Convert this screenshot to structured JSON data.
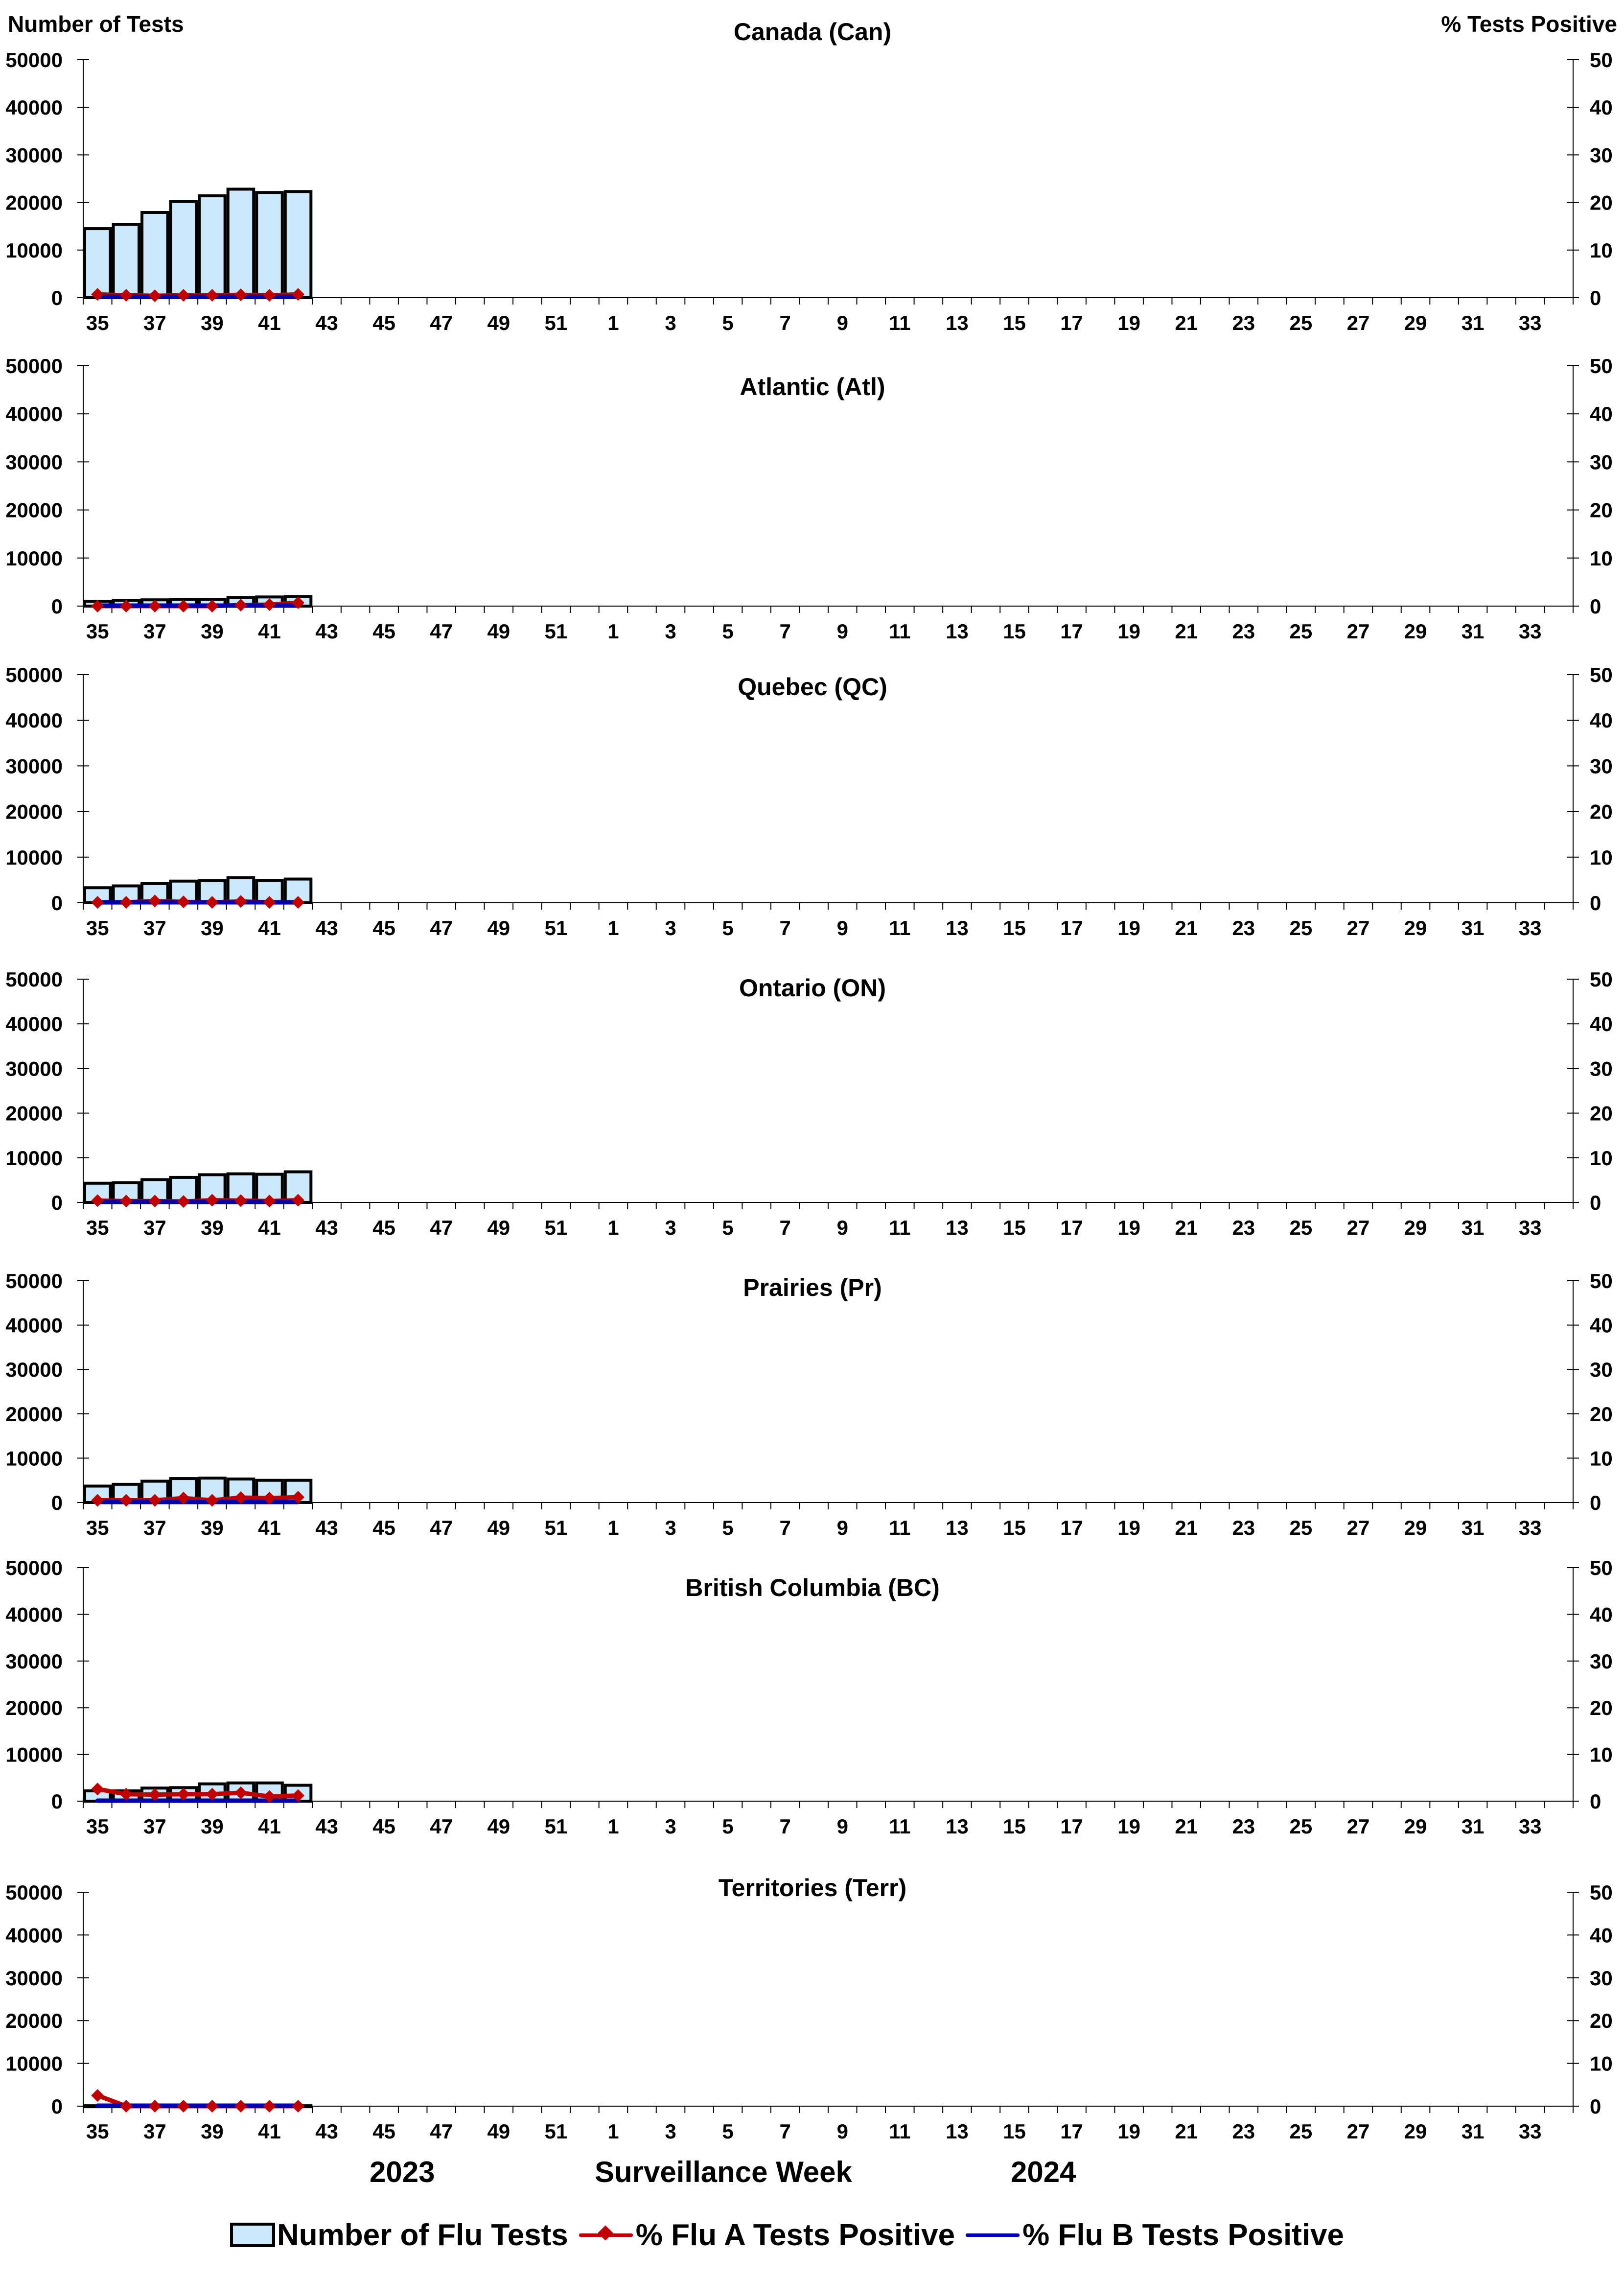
{
  "header": {
    "left_axis_title": "Number of Tests",
    "right_axis_title": "% Tests Positive"
  },
  "footer": {
    "year_left": "2023",
    "xlabel": "Surveillance Week",
    "year_right": "2024"
  },
  "legend": {
    "items": [
      {
        "label": "Number of Flu Tests",
        "type": "bar",
        "color": "#cce9fb"
      },
      {
        "label": "% Flu A Tests Positive",
        "type": "line-marker",
        "color": "#c00000"
      },
      {
        "label": "% Flu B Tests Positive",
        "type": "line",
        "color": "#0000b0"
      }
    ]
  },
  "colors": {
    "bar_fill": "#cce9fb",
    "bar_stroke": "#000000",
    "flu_a": "#c00000",
    "flu_b": "#0000b0",
    "axis": "#000000"
  },
  "chart_data": {
    "type": "bar+line",
    "xlabel": "Surveillance Week",
    "ylabel_left": "Number of Tests",
    "ylabel_right": "% Tests Positive",
    "ylim_left": [
      0,
      50000
    ],
    "ylim_right": [
      0,
      50
    ],
    "yticks_left": [
      "0",
      "10000",
      "20000",
      "30000",
      "40000",
      "50000"
    ],
    "yticks_right": [
      "0",
      "10",
      "20",
      "30",
      "40",
      "50"
    ],
    "grid": false,
    "legend_position": "bottom",
    "weeks": [
      35,
      36,
      37,
      38,
      39,
      40,
      41,
      42,
      43,
      44,
      45,
      46,
      47,
      48,
      49,
      50,
      51,
      52,
      1,
      2,
      3,
      4,
      5,
      6,
      7,
      8,
      9,
      10,
      11,
      12,
      13,
      14,
      15,
      16,
      17,
      18,
      19,
      20,
      21,
      22,
      23,
      24,
      25,
      26,
      27,
      28,
      29,
      30,
      31,
      32,
      33,
      34
    ],
    "x_tick_labels": [
      "35",
      "37",
      "39",
      "41",
      "43",
      "45",
      "47",
      "49",
      "51",
      "1",
      "3",
      "5",
      "7",
      "9",
      "11",
      "13",
      "15",
      "17",
      "19",
      "21",
      "23",
      "25",
      "27",
      "29",
      "31",
      "33"
    ],
    "panels": [
      {
        "title": "Canada (Can)",
        "categories": [
          35,
          36,
          37,
          38,
          39,
          40,
          41,
          42
        ],
        "series": [
          {
            "name": "Number of Flu Tests",
            "values": [
              14500,
              15400,
              17900,
              20200,
              21400,
              22800,
              22100,
              22300
            ]
          },
          {
            "name": "% Flu A Tests Positive",
            "values": [
              0.7,
              0.5,
              0.4,
              0.5,
              0.5,
              0.6,
              0.5,
              0.7
            ]
          },
          {
            "name": "% Flu B Tests Positive",
            "values": [
              0.1,
              0.1,
              0.1,
              0.1,
              0.1,
              0.1,
              0.1,
              0.1
            ]
          }
        ]
      },
      {
        "title": "Atlantic (Atl)",
        "categories": [
          35,
          36,
          37,
          38,
          39,
          40,
          41,
          42
        ],
        "series": [
          {
            "name": "Number of Flu Tests",
            "values": [
              1000,
              1200,
              1300,
              1400,
              1400,
              1800,
              1900,
              2000
            ]
          },
          {
            "name": "% Flu A Tests Positive",
            "values": [
              0.0,
              0.0,
              0.0,
              0.0,
              0.0,
              0.2,
              0.3,
              0.7
            ]
          },
          {
            "name": "% Flu B Tests Positive",
            "values": [
              0.0,
              0.0,
              0.0,
              0.0,
              0.0,
              0.0,
              0.0,
              0.0
            ]
          }
        ]
      },
      {
        "title": "Quebec (QC)",
        "categories": [
          35,
          36,
          37,
          38,
          39,
          40,
          41,
          42
        ],
        "series": [
          {
            "name": "Number of Flu Tests",
            "values": [
              3300,
              3700,
              4200,
              4750,
              4850,
              5500,
              4900,
              5200
            ]
          },
          {
            "name": "% Flu A Tests Positive",
            "values": [
              0.1,
              0.1,
              0.4,
              0.2,
              0.1,
              0.3,
              0.1,
              0.1
            ]
          },
          {
            "name": "% Flu B Tests Positive",
            "values": [
              0.0,
              0.0,
              0.0,
              0.0,
              0.0,
              0.0,
              0.0,
              0.0
            ]
          }
        ]
      },
      {
        "title": "Ontario (ON)",
        "categories": [
          35,
          36,
          37,
          38,
          39,
          40,
          41,
          42
        ],
        "series": [
          {
            "name": "Number of Flu Tests",
            "values": [
              4300,
              4400,
              5100,
              5600,
              6200,
              6400,
              6300,
              6850
            ]
          },
          {
            "name": "% Flu A Tests Positive",
            "values": [
              0.4,
              0.3,
              0.3,
              0.2,
              0.5,
              0.4,
              0.3,
              0.5
            ]
          },
          {
            "name": "% Flu B Tests Positive",
            "values": [
              0.0,
              0.0,
              0.0,
              0.0,
              0.0,
              0.0,
              0.0,
              0.0
            ]
          }
        ]
      },
      {
        "title": "Prairies (Pr)",
        "categories": [
          35,
          36,
          37,
          38,
          39,
          40,
          41,
          42
        ],
        "series": [
          {
            "name": "Number of Flu Tests",
            "values": [
              3700,
              4100,
              4800,
              5400,
              5500,
              5300,
              5000,
              5000
            ]
          },
          {
            "name": "% Flu A Tests Positive",
            "values": [
              0.5,
              0.5,
              0.5,
              1.0,
              0.5,
              1.1,
              1.0,
              1.2
            ]
          },
          {
            "name": "% Flu B Tests Positive",
            "values": [
              0.0,
              0.0,
              0.0,
              0.0,
              0.0,
              0.0,
              0.0,
              0.0
            ]
          }
        ]
      },
      {
        "title": "British Columbia (BC)",
        "categories": [
          35,
          36,
          37,
          38,
          39,
          40,
          41,
          42
        ],
        "series": [
          {
            "name": "Number of Flu Tests",
            "values": [
              2200,
              2200,
              2800,
              2900,
              3700,
              3900,
              3900,
              3400
            ]
          },
          {
            "name": "% Flu A Tests Positive",
            "values": [
              2.6,
              1.5,
              1.4,
              1.5,
              1.5,
              1.8,
              1.0,
              1.2
            ]
          },
          {
            "name": "% Flu B Tests Positive",
            "values": [
              0.0,
              0.0,
              0.0,
              0.0,
              0.0,
              0.0,
              0.0,
              0.0
            ]
          }
        ]
      },
      {
        "title": "Territories (Terr)",
        "categories": [
          35,
          36,
          37,
          38,
          39,
          40,
          41,
          42
        ],
        "series": [
          {
            "name": "Number of Flu Tests",
            "values": [
              100,
              100,
              100,
              100,
              100,
              100,
              100,
              100
            ]
          },
          {
            "name": "% Flu A Tests Positive",
            "values": [
              2.5,
              0.0,
              0.0,
              0.0,
              0.0,
              0.0,
              0.0,
              0.0
            ]
          },
          {
            "name": "% Flu B Tests Positive",
            "values": [
              0.0,
              0.0,
              0.0,
              0.0,
              0.0,
              0.0,
              0.0,
              0.0
            ]
          }
        ]
      }
    ]
  }
}
